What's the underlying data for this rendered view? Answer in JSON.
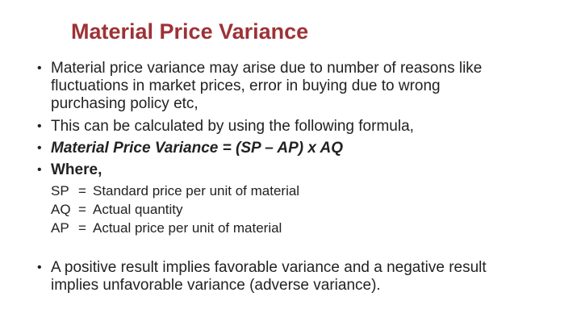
{
  "slide": {
    "title": "Material Price Variance",
    "title_color": "#9d3235",
    "text_color": "#222222",
    "background_color": "#ffffff",
    "bullet_glyph": "•",
    "bullets": [
      {
        "style": "normal",
        "lines": [
          "Material price variance may arise due to number of reasons like",
          "fluctuations in market prices, error in buying due to wrong",
          "purchasing policy etc,"
        ]
      },
      {
        "style": "normal",
        "lines": [
          "This can be calculated by using the following formula,"
        ]
      },
      {
        "style": "bold-italic",
        "lines": [
          "Material Price Variance = (SP – AP) x AQ"
        ]
      },
      {
        "style": "bold",
        "lines": [
          "Where,"
        ]
      }
    ],
    "definitions": [
      {
        "term": "SP",
        "eq": "=",
        "desc": "Standard price per unit of material"
      },
      {
        "term": "AQ",
        "eq": "=",
        "desc": "Actual quantity"
      },
      {
        "term": "AP",
        "eq": "=",
        "desc": "Actual price per unit of material"
      }
    ],
    "closing_bullet": {
      "lines": [
        "A positive result implies favorable variance and a negative result",
        "implies unfavorable variance (adverse variance)."
      ]
    }
  }
}
